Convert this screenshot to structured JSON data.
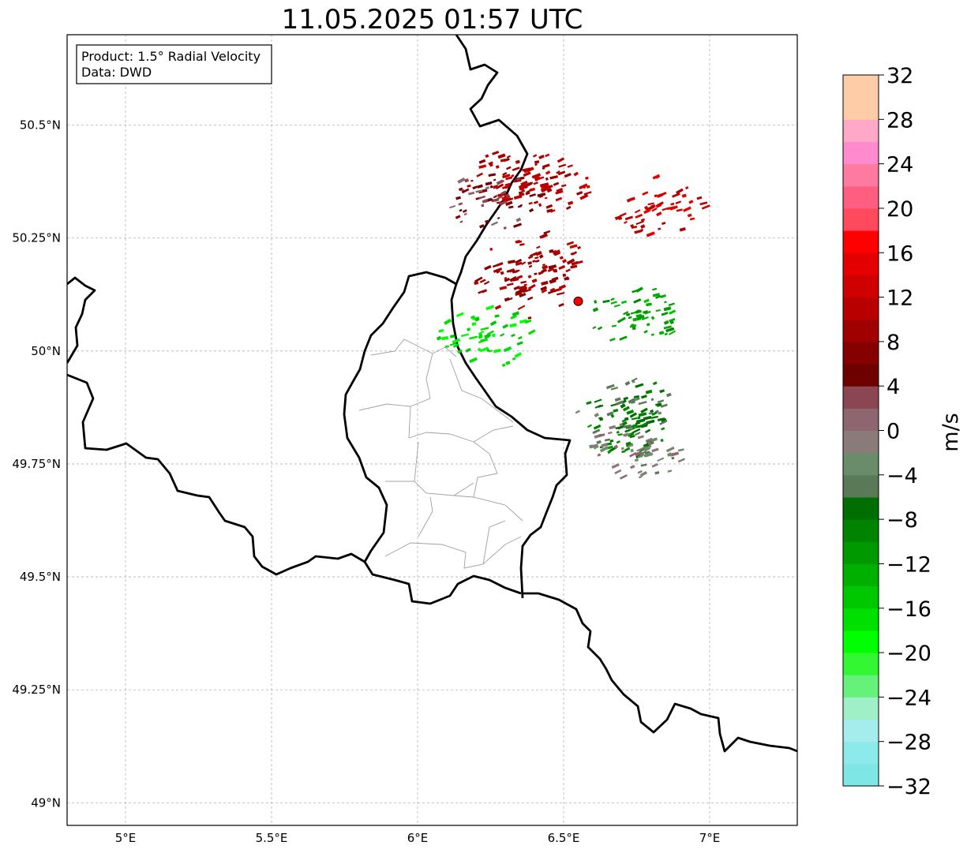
{
  "title": "11.05.2025 01:57 UTC",
  "info_box": {
    "product": "Product: 1.5° Radial Velocity",
    "source": "Data: DWD"
  },
  "map": {
    "lon_range": [
      4.8,
      7.3
    ],
    "lat_range": [
      48.95,
      50.7
    ],
    "lon_ticks": [
      {
        "value": 5.0,
        "label": "5°E"
      },
      {
        "value": 5.5,
        "label": "5.5°E"
      },
      {
        "value": 6.0,
        "label": "6°E"
      },
      {
        "value": 6.5,
        "label": "6.5°E"
      },
      {
        "value": 7.0,
        "label": "7°E"
      }
    ],
    "lat_ticks": [
      {
        "value": 49.0,
        "label": "49°N"
      },
      {
        "value": 49.25,
        "label": "49.25°N"
      },
      {
        "value": 49.5,
        "label": "49.5°N"
      },
      {
        "value": 49.75,
        "label": "49.75°N"
      },
      {
        "value": 50.0,
        "label": "50°N"
      },
      {
        "value": 50.25,
        "label": "50.25°N"
      },
      {
        "value": 50.5,
        "label": "50.5°N"
      }
    ],
    "radar_site": {
      "lon": 6.55,
      "lat": 50.11,
      "color": "#ff0000"
    },
    "echo_clusters": [
      {
        "lon": 6.33,
        "lat": 50.38,
        "vel": 10
      },
      {
        "lon": 6.42,
        "lat": 50.37,
        "vel": 11
      },
      {
        "lon": 6.25,
        "lat": 50.33,
        "vel": 4
      },
      {
        "lon": 6.82,
        "lat": 50.32,
        "vel": 13
      },
      {
        "lon": 6.4,
        "lat": 50.2,
        "vel": 10
      },
      {
        "lon": 6.35,
        "lat": 50.14,
        "vel": 9
      },
      {
        "lon": 6.73,
        "lat": 50.08,
        "vel": -12
      },
      {
        "lon": 6.23,
        "lat": 50.03,
        "vel": -17
      },
      {
        "lon": 6.7,
        "lat": 49.88,
        "vel": -6
      },
      {
        "lon": 6.72,
        "lat": 49.83,
        "vel": -8
      },
      {
        "lon": 6.75,
        "lat": 49.78,
        "vel": -2
      }
    ]
  },
  "colorbar": {
    "unit": "m/s",
    "min": -32,
    "max": 32,
    "ticks": [
      -32,
      -28,
      -24,
      -20,
      -16,
      -12,
      -8,
      -4,
      0,
      4,
      8,
      12,
      16,
      20,
      24,
      28,
      32
    ],
    "tick_labels": [
      "−32",
      "−28",
      "−24",
      "−20",
      "−16",
      "−12",
      "−8",
      "−4",
      "0",
      "4",
      "8",
      "12",
      "16",
      "20",
      "24",
      "28",
      "32"
    ],
    "colors": [
      "#7fe6e6",
      "#8ceaea",
      "#a5ecec",
      "#9ff0c8",
      "#66f27a",
      "#33f733",
      "#00ff00",
      "#00e000",
      "#00c800",
      "#00b000",
      "#009a00",
      "#008400",
      "#006e00",
      "#5a7a57",
      "#6b8c6a",
      "#8a7a78",
      "#8d6670",
      "#8a4652",
      "#6e0000",
      "#860000",
      "#a00000",
      "#b80000",
      "#d00000",
      "#e40000",
      "#ff0000",
      "#ff4a5e",
      "#ff5e80",
      "#ff7aa0",
      "#ff8ace",
      "#ffa8c8",
      "#ffcca8",
      "#ffcca8"
    ]
  }
}
